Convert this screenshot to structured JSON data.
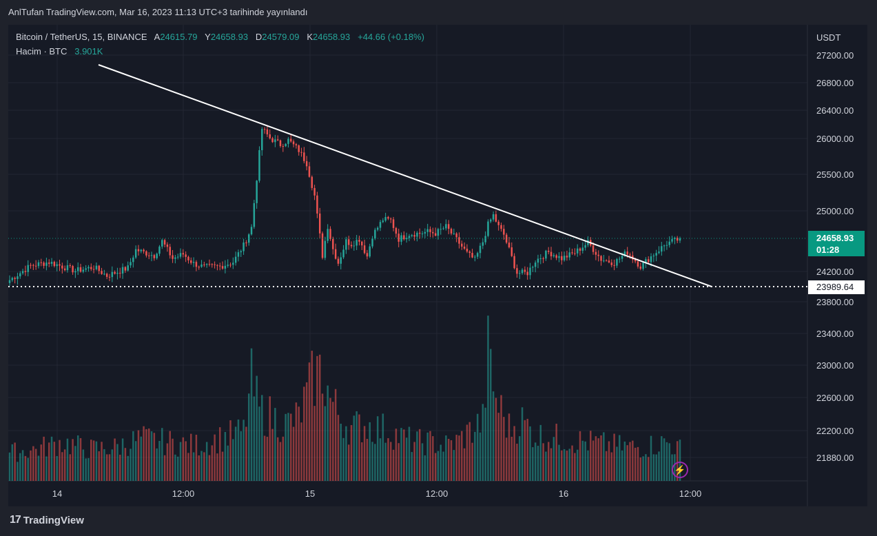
{
  "caption": "AnlTufan TradingView.com, Mar 16, 2023 11:13 UTC+3 tarihinde yayınlandı",
  "legend": {
    "symbol": "Bitcoin / TetherUS, 15, BINANCE",
    "o_label": "A",
    "o_value": "24615.79",
    "h_label": "Y",
    "h_value": "24658.93",
    "l_label": "D",
    "l_value": "24579.09",
    "c_label": "K",
    "c_value": "24658.93",
    "change": "+44.66 (+0.18%)",
    "volume_label": "Hacim · BTC",
    "volume_value": "3.901K"
  },
  "price_tag": {
    "value": "24658.93",
    "countdown": "01:28"
  },
  "level_tag": "23989.64",
  "footer": {
    "brand": "TradingView",
    "mark": "17"
  },
  "icons": {
    "bolt": "bolt-icon"
  },
  "colors": {
    "up": "#26a69a",
    "down": "#ef5350",
    "background": "#161a25",
    "text": "#d1d4dc"
  },
  "chart_data": {
    "type": "candlestick",
    "currency_label": "USDT",
    "y_ticks": [
      "27200.00",
      "26800.00",
      "26400.00",
      "26000.00",
      "25500.00",
      "25000.00",
      "24200.00",
      "23800.00",
      "23400.00",
      "23000.00",
      "22600.00",
      "22200.00",
      "21880.00"
    ],
    "x_ticks": [
      "14",
      "12:00",
      "15",
      "12:00",
      "16",
      "12:00"
    ],
    "current_price": 24658.93,
    "support_level": 23989.64,
    "trendline": {
      "start": {
        "x": "13 Mar 20:00",
        "y": 27050
      },
      "end": {
        "x": "16 Mar 13:00",
        "y": 23980
      }
    },
    "price_path": [
      [
        0,
        24080
      ],
      [
        8,
        24280
      ],
      [
        15,
        24330
      ],
      [
        25,
        24210
      ],
      [
        32,
        24260
      ],
      [
        37,
        24140
      ],
      [
        45,
        24250
      ],
      [
        48,
        24500
      ],
      [
        55,
        24420
      ],
      [
        58,
        24620
      ],
      [
        62,
        24380
      ],
      [
        66,
        24440
      ],
      [
        70,
        24310
      ],
      [
        74,
        24260
      ],
      [
        80,
        24270
      ],
      [
        85,
        24330
      ],
      [
        89,
        24560
      ],
      [
        92,
        24810
      ],
      [
        96,
        26180
      ],
      [
        99,
        26050
      ],
      [
        103,
        25960
      ],
      [
        106,
        26020
      ],
      [
        110,
        25880
      ],
      [
        113,
        25700
      ],
      [
        116,
        25250
      ],
      [
        119,
        24420
      ],
      [
        121,
        24830
      ],
      [
        123,
        24510
      ],
      [
        125,
        24320
      ],
      [
        128,
        24620
      ],
      [
        130,
        24580
      ],
      [
        133,
        24650
      ],
      [
        136,
        24410
      ],
      [
        138,
        24700
      ],
      [
        142,
        24920
      ],
      [
        145,
        24910
      ],
      [
        148,
        24650
      ],
      [
        152,
        24720
      ],
      [
        156,
        24730
      ],
      [
        159,
        24750
      ],
      [
        162,
        24730
      ],
      [
        166,
        24820
      ],
      [
        170,
        24640
      ],
      [
        174,
        24450
      ],
      [
        177,
        24360
      ],
      [
        180,
        24610
      ],
      [
        182,
        24850
      ],
      [
        184,
        24980
      ],
      [
        186,
        24820
      ],
      [
        188,
        24710
      ],
      [
        190,
        24500
      ],
      [
        193,
        24180
      ],
      [
        197,
        24180
      ],
      [
        200,
        24350
      ],
      [
        205,
        24470
      ],
      [
        210,
        24380
      ],
      [
        215,
        24460
      ],
      [
        220,
        24600
      ],
      [
        225,
        24370
      ],
      [
        230,
        24320
      ],
      [
        235,
        24470
      ],
      [
        240,
        24270
      ],
      [
        245,
        24440
      ],
      [
        250,
        24590
      ],
      [
        255,
        24650
      ]
    ],
    "volume_path": [
      [
        0,
        80
      ],
      [
        10,
        90
      ],
      [
        20,
        110
      ],
      [
        30,
        90
      ],
      [
        40,
        95
      ],
      [
        50,
        120
      ],
      [
        60,
        110
      ],
      [
        70,
        100
      ],
      [
        80,
        120
      ],
      [
        89,
        140
      ],
      [
        92,
        280
      ],
      [
        95,
        200
      ],
      [
        100,
        180
      ],
      [
        105,
        160
      ],
      [
        110,
        180
      ],
      [
        113,
        240
      ],
      [
        116,
        300
      ],
      [
        119,
        310
      ],
      [
        122,
        230
      ],
      [
        126,
        180
      ],
      [
        130,
        150
      ],
      [
        135,
        160
      ],
      [
        140,
        150
      ],
      [
        145,
        140
      ],
      [
        150,
        120
      ],
      [
        155,
        110
      ],
      [
        160,
        110
      ],
      [
        165,
        100
      ],
      [
        170,
        110
      ],
      [
        175,
        140
      ],
      [
        180,
        170
      ],
      [
        182,
        360
      ],
      [
        185,
        230
      ],
      [
        190,
        150
      ],
      [
        195,
        170
      ],
      [
        200,
        130
      ],
      [
        210,
        120
      ],
      [
        220,
        110
      ],
      [
        230,
        100
      ],
      [
        240,
        95
      ],
      [
        250,
        110
      ],
      [
        255,
        90
      ]
    ],
    "volume_unit": "BTC"
  }
}
